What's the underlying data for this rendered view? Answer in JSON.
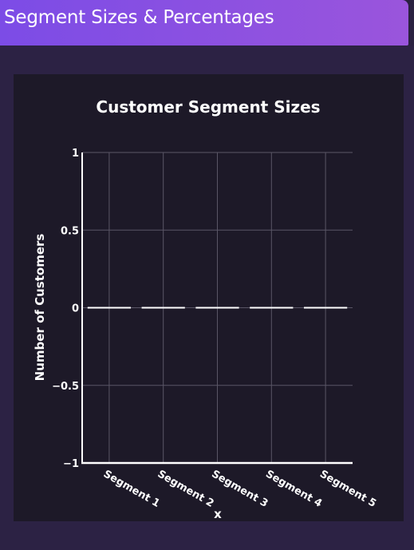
{
  "header": {
    "title": "Segment Sizes & Percentages"
  },
  "colors": {
    "header_gradient_start": "#7c4ce6",
    "header_gradient_end": "#9a55dc",
    "page_background": "#2c2244",
    "card_background": "#1d1928",
    "text": "#ffffff",
    "bar": "#ffffff",
    "grid": "#5a5666"
  },
  "chart_data": {
    "type": "bar",
    "title": "Customer Segment Sizes",
    "xlabel": "x",
    "ylabel": "Number of Customers",
    "categories": [
      "Segment 1",
      "Segment 2",
      "Segment 3",
      "Segment 4",
      "Segment 5"
    ],
    "values": [
      0,
      0,
      0,
      0,
      0
    ],
    "ylim": [
      -1,
      1
    ],
    "yticks": [
      -1,
      -0.5,
      0,
      0.5,
      1
    ],
    "ytick_labels": [
      "−1",
      "−0.5",
      "0",
      "0.5",
      "1"
    ],
    "grid": true,
    "legend": false
  }
}
